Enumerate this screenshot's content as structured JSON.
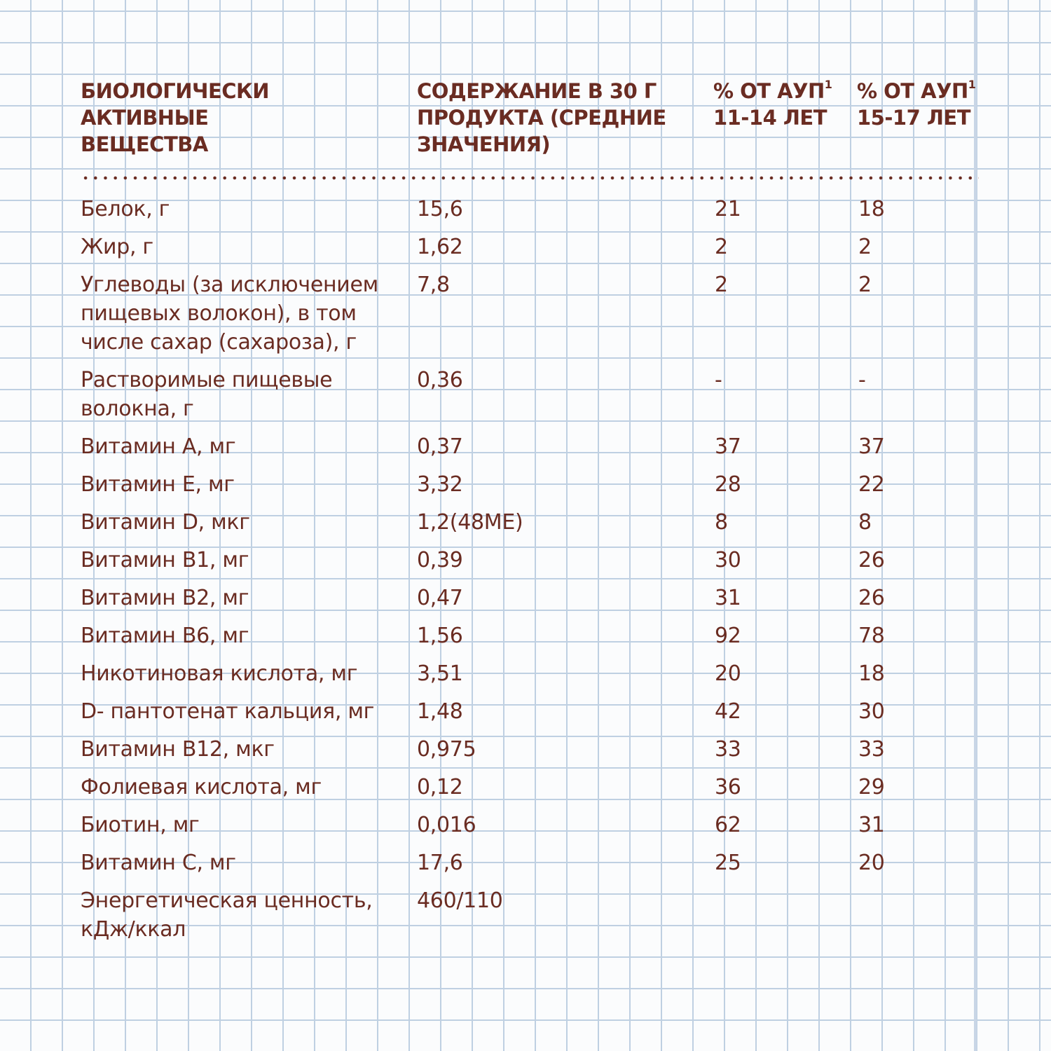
{
  "header": {
    "col1": [
      "Биологически",
      "активные",
      "вещества"
    ],
    "col2": [
      "Содержание в 30 г",
      "продукта (средние",
      "значения)"
    ],
    "col3": {
      "line1": "% от АУП",
      "sup": "1",
      "line2": "11-14 лет"
    },
    "col4": {
      "line1": "% от АУП",
      "sup": "1",
      "line2": "15-17 лет"
    }
  },
  "rows": [
    {
      "name": "Белок, г",
      "amount": "15,6",
      "pct_11_14": "21",
      "pct_15_17": "18"
    },
    {
      "name": "Жир, г",
      "amount": "1,62",
      "pct_11_14": "2",
      "pct_15_17": "2"
    },
    {
      "name": "Углеводы (за исключением пищевых волокон), в том числе сахар (сахароза), г",
      "amount": "7,8",
      "pct_11_14": "2",
      "pct_15_17": "2"
    },
    {
      "name": "Растворимые пищевые волокна, г",
      "amount": "0,36",
      "pct_11_14": "-",
      "pct_15_17": "-"
    },
    {
      "name": "Витамин А, мг",
      "amount": "0,37",
      "pct_11_14": "37",
      "pct_15_17": "37"
    },
    {
      "name": "Витамин Е, мг",
      "amount": "3,32",
      "pct_11_14": "28",
      "pct_15_17": "22"
    },
    {
      "name": "Витамин D, мкг",
      "amount": "1,2(48МЕ)",
      "pct_11_14": "8",
      "pct_15_17": "8"
    },
    {
      "name": "Витамин В1, мг",
      "amount": "0,39",
      "pct_11_14": "30",
      "pct_15_17": "26"
    },
    {
      "name": "Витамин В2, мг",
      "amount": "0,47",
      "pct_11_14": "31",
      "pct_15_17": "26"
    },
    {
      "name": "Витамин В6, мг",
      "amount": "1,56",
      "pct_11_14": "92",
      "pct_15_17": "78"
    },
    {
      "name": "Никотиновая кислота, мг",
      "amount": "3,51",
      "pct_11_14": "20",
      "pct_15_17": "18"
    },
    {
      "name": "D- пантотенат кальция, мг",
      "amount": "1,48",
      "pct_11_14": "42",
      "pct_15_17": "30"
    },
    {
      "name": "Витамин В12, мкг",
      "amount": "0,975",
      "pct_11_14": "33",
      "pct_15_17": "33"
    },
    {
      "name": "Фолиевая кислота, мг",
      "amount": "0,12",
      "pct_11_14": "36",
      "pct_15_17": "29"
    },
    {
      "name": "Биотин, мг",
      "amount": "0,016",
      "pct_11_14": "62",
      "pct_15_17": "31"
    },
    {
      "name": "Витамин С, мг",
      "amount": "17,6",
      "pct_11_14": "25",
      "pct_15_17": "20"
    },
    {
      "name": "Энергетическая ценность, кДж/ккал",
      "amount": "460/110",
      "pct_11_14": "",
      "pct_15_17": ""
    }
  ],
  "colors": {
    "text": "#6a2c22",
    "grid": "#bfd0e2",
    "paper": "#fbfcfd"
  }
}
